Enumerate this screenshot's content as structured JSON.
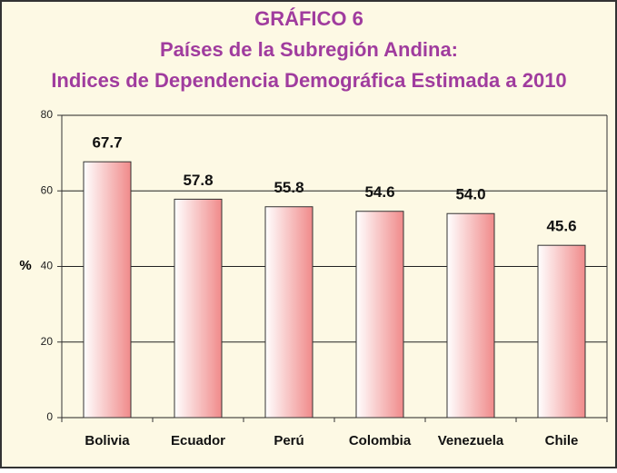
{
  "chart_data": {
    "type": "bar",
    "title": "GRÁFICO 6",
    "subtitle": [
      "Países de la Subregión Andina:",
      "Indices de Dependencia Demográfica Estimada a 2010"
    ],
    "y_label": "%",
    "categories": [
      "Bolivia",
      "Ecuador",
      "Perú",
      "Colombia",
      "Venezuela",
      "Chile"
    ],
    "values": [
      67.7,
      57.8,
      55.8,
      54.6,
      54,
      45.6
    ],
    "value_labels": [
      "67.7",
      "57.8",
      "55.8",
      "54.6",
      "54.0",
      "45.6"
    ],
    "color": "#f08a8a",
    "ylim": [
      0,
      80
    ],
    "yticks": [
      0,
      20,
      40,
      60,
      80
    ],
    "grid": true
  }
}
